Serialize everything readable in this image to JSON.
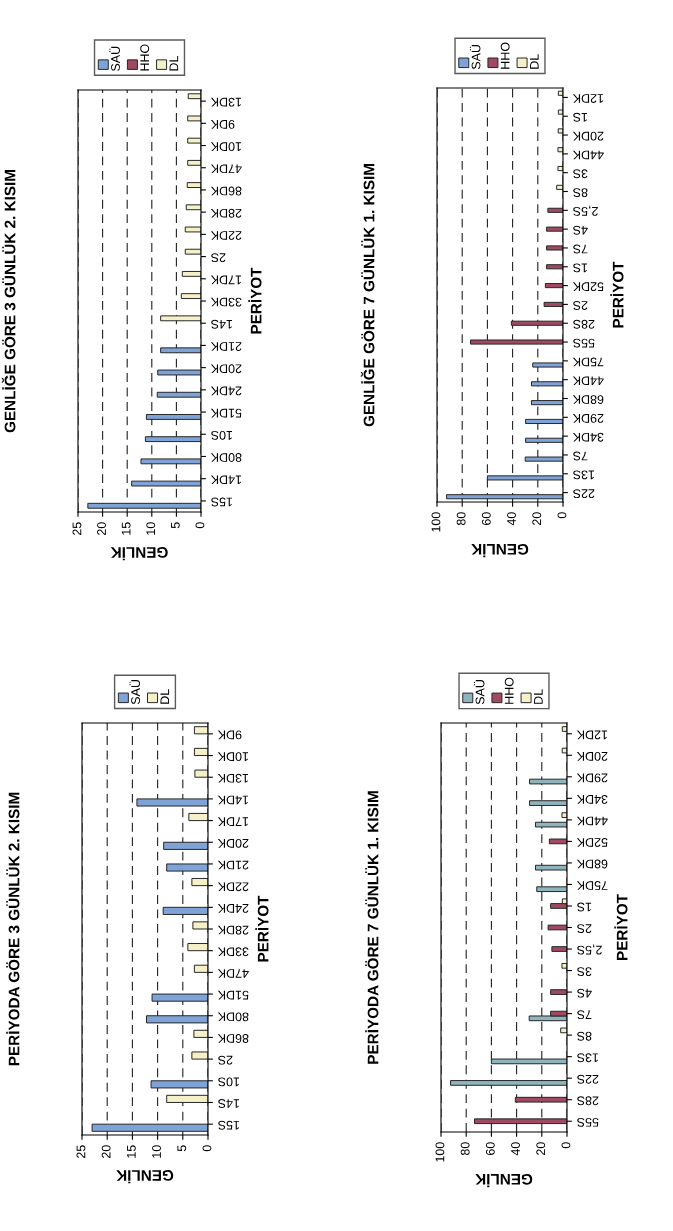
{
  "chart_data": [
    {
      "type": "bar",
      "orientation": "horizontal",
      "title": "GENLİĞE GÖRE 3 GÜNLÜK 2. KISIM",
      "xlabel": "GENLİK",
      "ylabel": "PERİYOT",
      "categories": [
        "13DK",
        "9DK",
        "10DK",
        "47DK",
        "86DK",
        "28DK",
        "22DK",
        "2S",
        "17DK",
        "33DK",
        "14S",
        "21DK",
        "20DK",
        "24DK",
        "51DK",
        "10S",
        "80DK",
        "14DK",
        "15S"
      ],
      "series": [
        {
          "name": "SAÜ",
          "color": "#7fa3d6",
          "values": [
            null,
            null,
            null,
            null,
            null,
            null,
            null,
            null,
            null,
            null,
            null,
            8.2,
            8.8,
            8.9,
            11.1,
            11.3,
            12.2,
            14.1,
            23
          ]
        },
        {
          "name": "HHO",
          "color": "#a04a62",
          "values": [
            null,
            null,
            null,
            null,
            null,
            null,
            null,
            null,
            null,
            null,
            null,
            null,
            null,
            null,
            null,
            null,
            null,
            null,
            null
          ]
        },
        {
          "name": "DL",
          "color": "#f6f0c8",
          "values": [
            2.6,
            2.7,
            2.7,
            2.7,
            2.8,
            3.0,
            3.2,
            3.2,
            3.8,
            4.0,
            8.2,
            null,
            null,
            null,
            null,
            null,
            null,
            null,
            null
          ]
        }
      ],
      "xlim": [
        25,
        0
      ],
      "xticks": [
        0,
        5,
        10,
        15,
        20,
        25
      ],
      "grid": "x",
      "legend": "top"
    },
    {
      "type": "bar",
      "orientation": "horizontal",
      "title": "GENLİĞE GÖRE 7 GÜNLÜK 1. KISIM",
      "xlabel": "GENLİK",
      "ylabel": "PERİYOT",
      "categories": [
        "12DK",
        "1S",
        "20DK",
        "44DK",
        "3S",
        "8S",
        "2,5S",
        "4S",
        "7S",
        "1S",
        "52DK",
        "2S",
        "28S",
        "55S",
        "75DK",
        "44DK",
        "68DK",
        "29DK",
        "34DK",
        "7S",
        "13S",
        "22S"
      ],
      "series": [
        {
          "name": "SAÜ",
          "color": "#7fa3d6",
          "values": [
            null,
            null,
            null,
            null,
            null,
            null,
            null,
            null,
            null,
            null,
            null,
            null,
            null,
            null,
            24,
            25,
            25,
            29.7,
            29.7,
            30,
            60,
            92.4
          ]
        },
        {
          "name": "HHO",
          "color": "#a04a62",
          "values": [
            null,
            null,
            null,
            null,
            null,
            null,
            12,
            13,
            13,
            13,
            14,
            15,
            41,
            73.4,
            null,
            null,
            null,
            null,
            null,
            null,
            null,
            null
          ]
        },
        {
          "name": "DL",
          "color": "#f6f0c8",
          "values": [
            3.7,
            3.7,
            3.8,
            4.0,
            4.0,
            5,
            null,
            null,
            null,
            null,
            null,
            null,
            null,
            null,
            null,
            null,
            null,
            null,
            null,
            null,
            null,
            null
          ]
        }
      ],
      "xlim": [
        100,
        0
      ],
      "xticks": [
        0,
        20,
        40,
        60,
        80,
        100
      ],
      "grid": "x",
      "legend": "top"
    },
    {
      "type": "bar",
      "orientation": "horizontal",
      "title": "PERİYODA GÖRE 3 GÜNLÜK 2. KISIM",
      "xlabel": "GENLİK",
      "ylabel": "PERİYOT",
      "categories": [
        "9DK",
        "10DK",
        "13DK",
        "14DK",
        "17DK",
        "20DK",
        "21DK",
        "22DK",
        "24DK",
        "28DK",
        "33DK",
        "47DK",
        "51DK",
        "80DK",
        "86DK",
        "2S",
        "10S",
        "14S",
        "15S"
      ],
      "series": [
        {
          "name": "SAÜ",
          "color": "#7fa3d6",
          "values": [
            null,
            null,
            null,
            14.1,
            null,
            8.8,
            8.2,
            null,
            8.9,
            null,
            null,
            null,
            11.1,
            12.2,
            null,
            null,
            11.3,
            null,
            23
          ]
        },
        {
          "name": "DL",
          "color": "#f6f0c8",
          "values": [
            2.7,
            2.7,
            2.6,
            null,
            3.8,
            null,
            null,
            3.2,
            null,
            3.0,
            4.0,
            2.7,
            null,
            null,
            2.8,
            3.2,
            null,
            8.2,
            null
          ]
        }
      ],
      "xlim": [
        25,
        0
      ],
      "xticks": [
        0,
        5,
        10,
        15,
        20,
        25
      ],
      "grid": "x",
      "legend": "top"
    },
    {
      "type": "bar",
      "orientation": "horizontal",
      "title": "PERİYODA GÖRE 7 GÜNLÜK 1. KISIM",
      "xlabel": "GENLİK",
      "ylabel": "PERİYOT",
      "categories": [
        "12DK",
        "20DK",
        "29DK",
        "34DK",
        "44DK",
        "52DK",
        "68DK",
        "75DK",
        "1S",
        "2S",
        "2,5S",
        "3S",
        "4S",
        "7S",
        "8S",
        "13S",
        "22S",
        "28S",
        "55S"
      ],
      "series": [
        {
          "name": "SAÜ",
          "color": "#90b4bd",
          "values": [
            null,
            null,
            29.7,
            29.7,
            25,
            null,
            25,
            24,
            null,
            null,
            null,
            null,
            null,
            30,
            null,
            60,
            92.4,
            null,
            null
          ]
        },
        {
          "name": "HHO",
          "color": "#a04a62",
          "values": [
            null,
            null,
            null,
            null,
            null,
            14,
            null,
            null,
            13,
            15,
            12,
            null,
            13,
            13,
            null,
            null,
            null,
            41,
            73.4
          ]
        },
        {
          "name": "DL",
          "color": "#f6f0c8",
          "values": [
            3.7,
            3.8,
            null,
            null,
            4.0,
            null,
            null,
            null,
            3.7,
            null,
            null,
            4.0,
            null,
            null,
            5,
            null,
            null,
            null,
            null
          ]
        }
      ],
      "xlim": [
        100,
        0
      ],
      "xticks": [
        0,
        20,
        40,
        60,
        80,
        100
      ],
      "grid": "x",
      "legend": "top"
    }
  ]
}
